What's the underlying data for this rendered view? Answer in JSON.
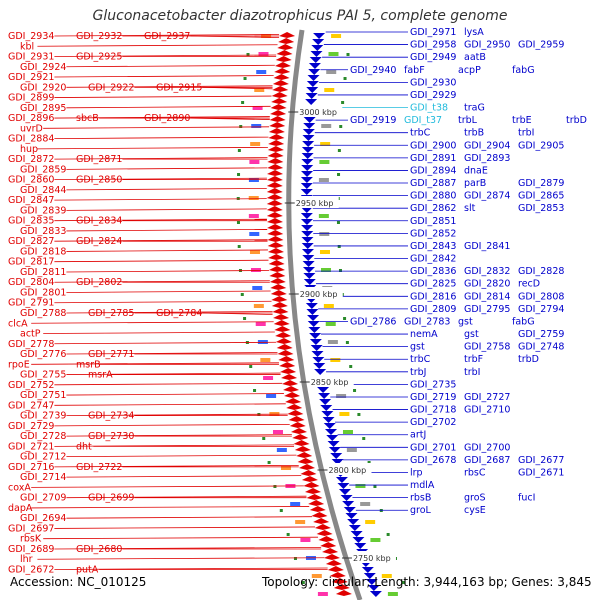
{
  "title": "Gluconacetobacter diazotrophicus PAI 5, complete genome",
  "footer": {
    "accession": "Accession: NC_010125",
    "topology": "Topology: circular; Length: 3,944,163 bp; Genes: 3,845"
  },
  "colors": {
    "reverse_strand": "#e00000",
    "forward_strand": "#0000cc",
    "rna": "#22bbdd",
    "backbone": "#888888"
  },
  "scale_ticks": [
    "3000 kbp",
    "2950 kbp",
    "2900 kbp",
    "2850 kbp",
    "2800 kbp",
    "2750 kbp"
  ],
  "left_labels": [
    "GDI_2934",
    "GDI_2932",
    "GDI_2937",
    "kbl",
    "GDI_2931",
    "GDI_2925",
    "GDI_2924",
    "GDI_2921",
    "GDI_2920",
    "GDI_2922",
    "GDI_2915",
    "GDI_2899",
    "GDI_2895",
    "GDI_2896",
    "sbcB",
    "GDI_2890",
    "uvrD",
    "GDI_2884",
    "hup",
    "GDI_2872",
    "GDI_2871",
    "GDI_2859",
    "GDI_2860",
    "GDI_2850",
    "GDI_2844",
    "GDI_2847",
    "GDI_2839",
    "GDI_2835",
    "GDI_2834",
    "GDI_2833",
    "GDI_2827",
    "GDI_2824",
    "GDI_2818",
    "GDI_2817",
    "GDI_2811",
    "GDI_2804",
    "GDI_2802",
    "GDI_2801",
    "GDI_2791",
    "GDI_2788",
    "GDI_2785",
    "GDI_2784",
    "clcA",
    "actP",
    "GDI_2778",
    "GDI_2776",
    "GDI_2771",
    "rpoE",
    "msrB",
    "GDI_2755",
    "msrA",
    "GDI_2752",
    "GDI_2751",
    "GDI_2747",
    "GDI_2739",
    "GDI_2734",
    "GDI_2729",
    "GDI_2728",
    "GDI_2730",
    "GDI_2721",
    "dht",
    "GDI_2712",
    "GDI_2716",
    "GDI_2722",
    "GDI_2714",
    "coxA",
    "GDI_2709",
    "GDI_2699",
    "dapA",
    "GDI_2694",
    "GDI_2697",
    "rbsK",
    "GDI_2689",
    "GDI_2680",
    "lhr",
    "GDI_2672",
    "putA"
  ],
  "right_labels": [
    "GDI_2971",
    "lysA",
    "GDI_2958",
    "GDI_2950",
    "GDI_2959",
    "GDI_2949",
    "aatB",
    "GDI_2940",
    "fabF",
    "acpP",
    "fabG",
    "GDI_2930",
    "GDI_2929",
    "GDI_t38",
    "traG",
    "GDI_2919",
    "GDI_t37",
    "trbL",
    "trbE",
    "trbD",
    "trbC",
    "trbB",
    "trbI",
    "GDI_2900",
    "GDI_2904",
    "GDI_2905",
    "GDI_2891",
    "GDI_2893",
    "GDI_2894",
    "dnaE",
    "GDI_2887",
    "parB",
    "GDI_2879",
    "GDI_2880",
    "GDI_2874",
    "GDI_2865",
    "GDI_2862",
    "slt",
    "GDI_2853",
    "GDI_2851",
    "GDI_2852",
    "GDI_2843",
    "GDI_2841",
    "GDI_2842",
    "GDI_2836",
    "GDI_2832",
    "GDI_2828",
    "GDI_2825",
    "GDI_2820",
    "recD",
    "GDI_2816",
    "GDI_2814",
    "GDI_2808",
    "GDI_2809",
    "GDI_2795",
    "GDI_2794",
    "GDI_2786",
    "GDI_2783",
    "gst",
    "fabG",
    "nemA",
    "gst",
    "GDI_2759",
    "gst",
    "GDI_2758",
    "GDI_2748",
    "trbC",
    "trbF",
    "trbD",
    "trbJ",
    "trbI",
    "GDI_2735",
    "GDI_2719",
    "GDI_2727",
    "GDI_2718",
    "GDI_2710",
    "GDI_2702",
    "artJ",
    "GDI_2701",
    "GDI_2700",
    "GDI_2678",
    "GDI_2687",
    "GDI_2677",
    "lrp",
    "rbsC",
    "GDI_2671",
    "mdlA",
    "rbsB",
    "groS",
    "fucI",
    "groL",
    "cysE"
  ]
}
